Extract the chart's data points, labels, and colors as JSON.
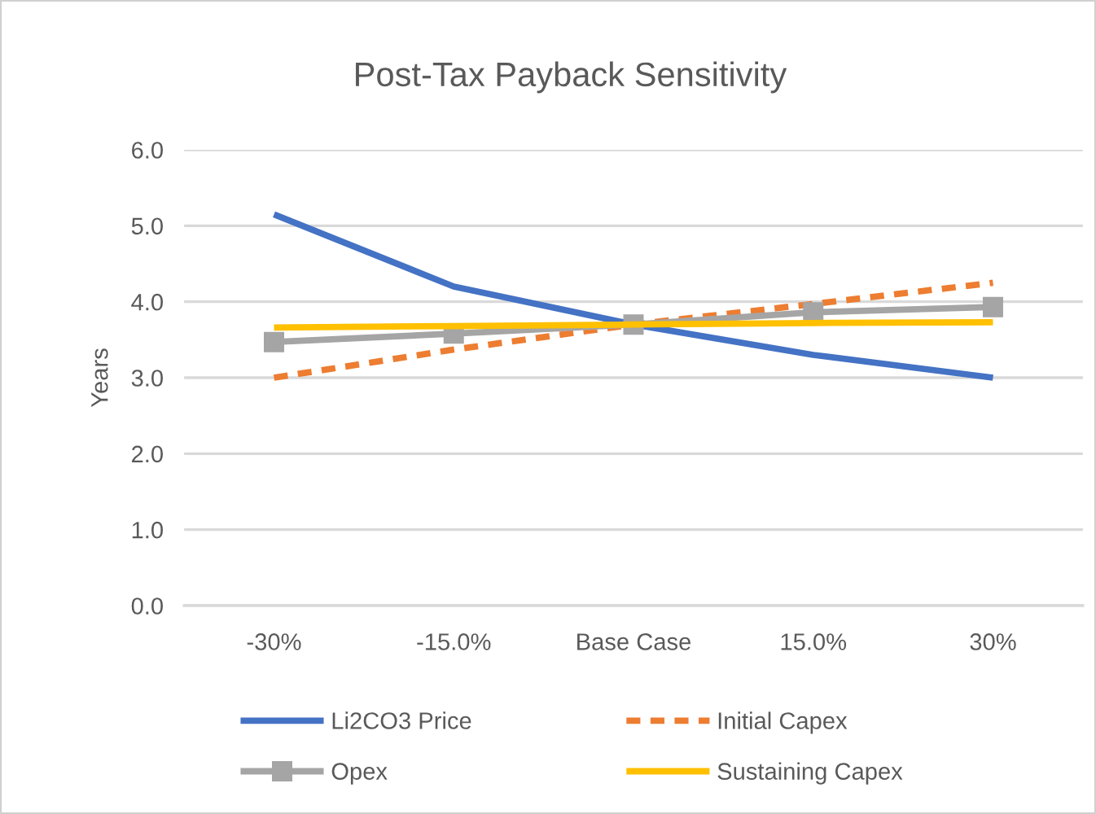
{
  "chart_data": {
    "type": "line",
    "title": "Post-Tax Payback Sensitivity",
    "ylabel": "Years",
    "categories": [
      "-30%",
      "-15.0%",
      "Base Case",
      "15.0%",
      "30%"
    ],
    "series": [
      {
        "name": "Li2CO3 Price",
        "color": "#4472c4",
        "values": [
          5.15,
          4.2,
          3.7,
          3.3,
          3.0
        ],
        "line_style": "solid",
        "marker": "none"
      },
      {
        "name": "Initial Capex",
        "color": "#ed7d31",
        "values": [
          3.0,
          3.37,
          3.7,
          3.97,
          4.25
        ],
        "line_style": "dashed",
        "marker": "none"
      },
      {
        "name": "Opex",
        "color": "#a5a5a5",
        "values": [
          3.47,
          3.58,
          3.7,
          3.86,
          3.93
        ],
        "line_style": "solid",
        "marker": "square"
      },
      {
        "name": "Sustaining Capex",
        "color": "#ffc000",
        "values": [
          3.66,
          3.68,
          3.7,
          3.72,
          3.73
        ],
        "line_style": "solid",
        "marker": "none"
      }
    ],
    "ylim": [
      0,
      6
    ],
    "yticks": [
      {
        "value": 0,
        "label": "0.0"
      },
      {
        "value": 1,
        "label": "1.0"
      },
      {
        "value": 2,
        "label": "2.0"
      },
      {
        "value": 3,
        "label": "3.0"
      },
      {
        "value": 4,
        "label": "4.0"
      },
      {
        "value": 5,
        "label": "5.0"
      },
      {
        "value": 6,
        "label": "6.0"
      }
    ],
    "grid": "y",
    "legend": "bottom"
  }
}
